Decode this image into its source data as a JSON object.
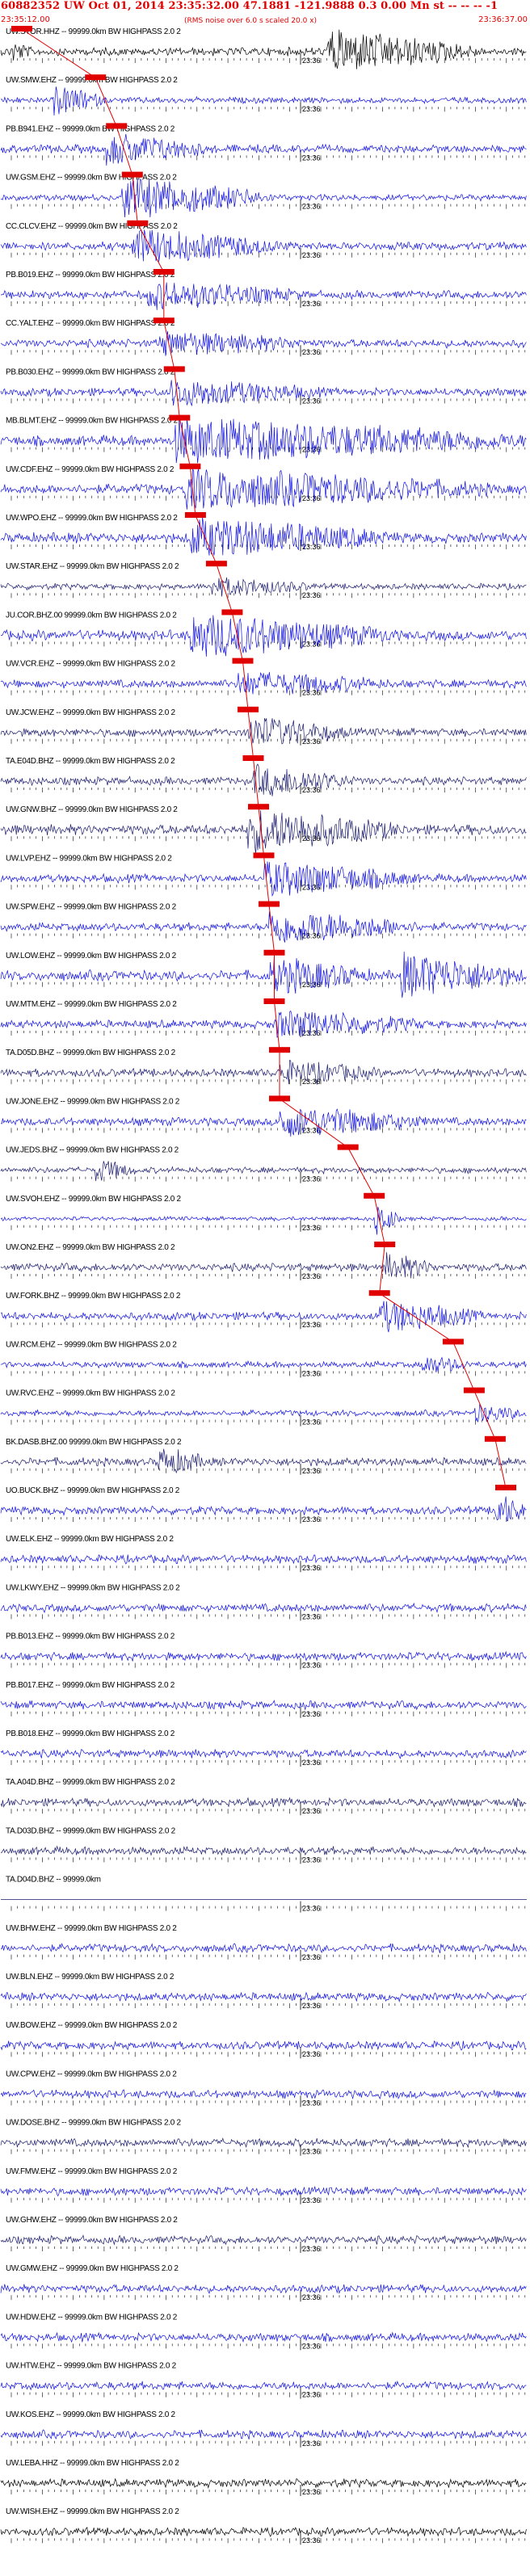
{
  "header": {
    "title": "60882352 UW Oct 01, 2014 23:35:32.00  47.1881 -121.9888  0.3 0.00 Mn st -- -- -- -1",
    "start_time": "23:35:12.00",
    "end_time": "23:36:37.00",
    "note": "(RMS noise over 6.0 s scaled 20.0 x)"
  },
  "chart_data": {
    "type": "line",
    "title": "60882352 UW Oct 01, 2014 23:35:32.00  47.1881 -121.9888  0.3 0.00 Mn st -- -- -- -1",
    "x_start": "23:35:12.00",
    "x_end": "23:36:37.00",
    "minute_mark": "23:36",
    "grid": false,
    "colors": {
      "trace": "#1010e0",
      "trace_dark": "#1a1a6e",
      "pick": "#e00000",
      "label": "#000000"
    },
    "traces": [
      {
        "label": "UW.STOR.HHZ -- 99999.0km BW  HIGHPASS  2.0  2",
        "color": "#000000",
        "amp": 4,
        "events": [
          {
            "t": 0.02,
            "a": 0.4,
            "d": 0.04
          },
          {
            "t": 0.62,
            "a": 1.0,
            "d": 0.3
          }
        ],
        "pick": 0.04
      },
      {
        "label": "UW.SMW.EHZ -- 99999.0km BW  HIGHPASS  2.0  2",
        "color": "#1010e0",
        "amp": 3,
        "events": [
          {
            "t": 0.1,
            "a": 0.7,
            "d": 0.1
          }
        ],
        "pick": 0.18
      },
      {
        "label": "PB.B941.EHZ -- 99999.0km BW  HIGHPASS  2.0  2",
        "color": "#1010e0",
        "amp": 4,
        "events": [
          {
            "t": 0.2,
            "a": 0.7,
            "d": 0.2
          }
        ],
        "pick": 0.22
      },
      {
        "label": "UW.GSM.EHZ -- 99999.0km BW  HIGHPASS  2.0  2",
        "color": "#1010e0",
        "amp": 3,
        "events": [
          {
            "t": 0.23,
            "a": 1.0,
            "d": 0.3
          }
        ],
        "pick": 0.25
      },
      {
        "label": "CC.CLCV.EHZ -- 99999.0km BW  HIGHPASS  2.0  2",
        "color": "#1010e0",
        "amp": 4,
        "events": [
          {
            "t": 0.25,
            "a": 0.8,
            "d": 0.3
          }
        ],
        "pick": 0.26
      },
      {
        "label": "PB.B019.EHZ -- 99999.0km BW  HIGHPASS  2.0  2",
        "color": "#1010e0",
        "amp": 4,
        "events": [
          {
            "t": 0.28,
            "a": 0.6,
            "d": 0.3
          }
        ],
        "pick": 0.31
      },
      {
        "label": "CC.YALT.EHZ -- 99999.0km BW  HIGHPASS  2.0  2",
        "color": "#1010e0",
        "amp": 4,
        "events": [
          {
            "t": 0.3,
            "a": 0.5,
            "d": 0.3
          }
        ],
        "pick": 0.31
      },
      {
        "label": "PB.B030.EHZ -- 99999.0km BW  HIGHPASS  2.0  2",
        "color": "#1010e0",
        "amp": 4,
        "events": [
          {
            "t": 0.32,
            "a": 0.6,
            "d": 0.3
          }
        ],
        "pick": 0.33
      },
      {
        "label": "MB.BLMT.EHZ -- 99999.0km BW  HIGHPASS  2.0  2",
        "color": "#1010e0",
        "amp": 5,
        "events": [
          {
            "t": 0.33,
            "a": 1.0,
            "d": 0.7
          }
        ],
        "pick": 0.34
      },
      {
        "label": "UW.CDF.EHZ -- 99999.0km BW  HIGHPASS  2.0  2",
        "color": "#1010e0",
        "amp": 5,
        "events": [
          {
            "t": 0.35,
            "a": 0.9,
            "d": 0.6
          }
        ],
        "pick": 0.36
      },
      {
        "label": "UW.WPO.EHZ -- 99999.0km BW  HIGHPASS  2.0  2",
        "color": "#1010e0",
        "amp": 5,
        "events": [
          {
            "t": 0.36,
            "a": 0.9,
            "d": 0.4
          }
        ],
        "pick": 0.37
      },
      {
        "label": "UW.STAR.EHZ -- 99999.0km BW  HIGHPASS  2.0  2",
        "color": "#1a1a6e",
        "amp": 3,
        "events": [
          {
            "t": 0.4,
            "a": 0.4,
            "d": 0.2
          }
        ],
        "pick": 0.41
      },
      {
        "label": "JU.COR.BHZ.00 99999.0km BW  HIGHPASS  2.0  2",
        "color": "#1010e0",
        "amp": 5,
        "events": [
          {
            "t": 0.36,
            "a": 1.0,
            "d": 0.4
          }
        ],
        "pick": 0.44
      },
      {
        "label": "UW.VCR.EHZ -- 99999.0km BW  HIGHPASS  2.0  2",
        "color": "#1010e0",
        "amp": 4,
        "events": [
          {
            "t": 0.45,
            "a": 0.5,
            "d": 0.3
          }
        ],
        "pick": 0.46
      },
      {
        "label": "UW.JCW.EHZ -- 99999.0km BW  HIGHPASS  2.0  2",
        "color": "#1a1a6e",
        "amp": 4,
        "events": [
          {
            "t": 0.47,
            "a": 0.7,
            "d": 0.2
          }
        ],
        "pick": 0.47
      },
      {
        "label": "TA.E04D.BHZ -- 99999.0km BW  HIGHPASS  2.0  2",
        "color": "#1a1a6e",
        "amp": 4,
        "events": [
          {
            "t": 0.48,
            "a": 0.7,
            "d": 0.2
          }
        ],
        "pick": 0.48
      },
      {
        "label": "UW.GNW.BHZ -- 99999.0km BW  HIGHPASS  2.0  2",
        "color": "#1a1a6e",
        "amp": 5,
        "events": [
          {
            "t": 0.47,
            "a": 1.0,
            "d": 0.3
          }
        ],
        "pick": 0.49
      },
      {
        "label": "UW.LVP.EHZ -- 99999.0km BW  HIGHPASS  2.0  2",
        "color": "#1010e0",
        "amp": 4,
        "events": [
          {
            "t": 0.5,
            "a": 0.8,
            "d": 0.3
          }
        ],
        "pick": 0.5
      },
      {
        "label": "UW.SPW.EHZ -- 99999.0km BW  HIGHPASS  2.0  2",
        "color": "#1010e0",
        "amp": 4,
        "events": [
          {
            "t": 0.51,
            "a": 0.8,
            "d": 0.3
          }
        ],
        "pick": 0.51
      },
      {
        "label": "UW.LOW.EHZ -- 99999.0km BW  HIGHPASS  2.0  2",
        "color": "#1010e0",
        "amp": 5,
        "events": [
          {
            "t": 0.51,
            "a": 0.8,
            "d": 0.2
          },
          {
            "t": 0.76,
            "a": 1.0,
            "d": 0.24
          }
        ],
        "pick": 0.52
      },
      {
        "label": "UW.MTM.EHZ -- 99999.0km BW  HIGHPASS  2.0  2",
        "color": "#1010e0",
        "amp": 4,
        "events": [
          {
            "t": 0.52,
            "a": 0.6,
            "d": 0.3
          }
        ],
        "pick": 0.52
      },
      {
        "label": "TA.D05D.BHZ -- 99999.0km BW  HIGHPASS  2.0  2",
        "color": "#1a1a6e",
        "amp": 4,
        "events": [
          {
            "t": 0.53,
            "a": 0.5,
            "d": 0.2
          }
        ],
        "pick": 0.53
      },
      {
        "label": "UW.JONE.EHZ -- 99999.0km BW  HIGHPASS  2.0  2",
        "color": "#1010e0",
        "amp": 4,
        "events": [
          {
            "t": 0.53,
            "a": 0.7,
            "d": 0.3
          }
        ],
        "pick": 0.53
      },
      {
        "label": "UW.JEDS.BHZ -- 99999.0km BW  HIGHPASS  2.0  2",
        "color": "#1a1a6e",
        "amp": 3,
        "events": [
          {
            "t": 0.18,
            "a": 0.5,
            "d": 0.08
          }
        ],
        "pick": 0.66
      },
      {
        "label": "UW.SVOH.EHZ -- 99999.0km BW  HIGHPASS  2.0  2",
        "color": "#1010e0",
        "amp": 2,
        "events": [
          {
            "t": 0.71,
            "a": 0.9,
            "d": 0.05
          }
        ],
        "pick": 0.71
      },
      {
        "label": "UW.ON2.EHZ -- 99999.0km BW  HIGHPASS  2.0  2",
        "color": "#1a1a6e",
        "amp": 4,
        "events": [
          {
            "t": 0.73,
            "a": 0.6,
            "d": 0.1
          }
        ],
        "pick": 0.73
      },
      {
        "label": "UW.FORK.BHZ -- 99999.0km BW  HIGHPASS  2.0  2",
        "color": "#1010e0",
        "amp": 4,
        "events": [
          {
            "t": 0.72,
            "a": 0.7,
            "d": 0.2
          }
        ],
        "pick": 0.72
      },
      {
        "label": "UW.RCM.EHZ -- 99999.0km BW  HIGHPASS  2.0  2",
        "color": "#1010e0",
        "amp": 3,
        "events": [
          {
            "t": 0.8,
            "a": 0.4,
            "d": 0.1
          }
        ],
        "pick": 0.86
      },
      {
        "label": "UW.RVC.EHZ -- 99999.0km BW  HIGHPASS  2.0  2",
        "color": "#1010e0",
        "amp": 3,
        "events": [
          {
            "t": 0.9,
            "a": 0.4,
            "d": 0.1
          }
        ],
        "pick": 0.9
      },
      {
        "label": "BK.DASB.BHZ.00 99999.0km BW  HIGHPASS  2.0  2",
        "color": "#1a1a6e",
        "amp": 4,
        "events": [
          {
            "t": 0.3,
            "a": 0.6,
            "d": 0.1
          }
        ],
        "pick": 0.94
      },
      {
        "label": "UO.BUCK.BHZ -- 99999.0km BW  HIGHPASS  2.0  2",
        "color": "#1010e0",
        "amp": 4,
        "events": [
          {
            "t": 0.94,
            "a": 0.8,
            "d": 0.06
          }
        ],
        "pick": 0.96
      },
      {
        "label": "UW.ELK.EHZ -- 99999.0km BW  HIGHPASS  2.0  2",
        "color": "#1010e0",
        "amp": 4,
        "events": [],
        "pick": null
      },
      {
        "label": "UW.LKWY.EHZ -- 99999.0km BW  HIGHPASS  2.0  2",
        "color": "#1010e0",
        "amp": 4,
        "events": [],
        "pick": null
      },
      {
        "label": "PB.B013.EHZ -- 99999.0km BW  HIGHPASS  2.0  2",
        "color": "#1010e0",
        "amp": 4,
        "events": [],
        "pick": null
      },
      {
        "label": "PB.B017.EHZ -- 99999.0km BW  HIGHPASS  2.0  2",
        "color": "#1010e0",
        "amp": 4,
        "events": [],
        "pick": null
      },
      {
        "label": "PB.B018.EHZ -- 99999.0km BW  HIGHPASS  2.0  2",
        "color": "#1010e0",
        "amp": 4,
        "events": [],
        "pick": null
      },
      {
        "label": "TA.A04D.BHZ -- 99999.0km BW  HIGHPASS  2.0  2",
        "color": "#1a1a6e",
        "amp": 4,
        "events": [],
        "pick": null
      },
      {
        "label": "TA.D03D.BHZ -- 99999.0km BW  HIGHPASS  2.0  2",
        "color": "#1a1a6e",
        "amp": 4,
        "events": [],
        "pick": null
      },
      {
        "label": "TA.D04D.BHZ -- 99999.0km",
        "color": "#1a1a6e",
        "amp": 0,
        "events": [],
        "pick": null
      },
      {
        "label": "UW.BHW.EHZ -- 99999.0km BW  HIGHPASS  2.0  2",
        "color": "#1010e0",
        "amp": 4,
        "events": [],
        "pick": null
      },
      {
        "label": "UW.BLN.EHZ -- 99999.0km BW  HIGHPASS  2.0  2",
        "color": "#1010e0",
        "amp": 4,
        "events": [],
        "pick": null
      },
      {
        "label": "UW.BOW.EHZ -- 99999.0km BW  HIGHPASS  2.0  2",
        "color": "#1010e0",
        "amp": 4,
        "events": [],
        "pick": null
      },
      {
        "label": "UW.CPW.EHZ -- 99999.0km BW  HIGHPASS  2.0  2",
        "color": "#1010e0",
        "amp": 4,
        "events": [],
        "pick": null
      },
      {
        "label": "UW.DOSE.BHZ -- 99999.0km BW  HIGHPASS  2.0  2",
        "color": "#1a1a6e",
        "amp": 4,
        "events": [],
        "pick": null
      },
      {
        "label": "UW.FMW.EHZ -- 99999.0km BW  HIGHPASS  2.0  2",
        "color": "#1010e0",
        "amp": 4,
        "events": [],
        "pick": null
      },
      {
        "label": "UW.GHW.EHZ -- 99999.0km BW  HIGHPASS  2.0  2",
        "color": "#1a1a6e",
        "amp": 4,
        "events": [],
        "pick": null
      },
      {
        "label": "UW.GMW.EHZ -- 99999.0km BW  HIGHPASS  2.0  2",
        "color": "#1010e0",
        "amp": 4,
        "events": [],
        "pick": null
      },
      {
        "label": "UW.HDW.EHZ -- 99999.0km BW  HIGHPASS  2.0  2",
        "color": "#1010e0",
        "amp": 4,
        "events": [],
        "pick": null
      },
      {
        "label": "UW.HTW.EHZ -- 99999.0km BW  HIGHPASS  2.0  2",
        "color": "#1010e0",
        "amp": 4,
        "events": [],
        "pick": null
      },
      {
        "label": "UW.KOS.EHZ -- 99999.0km BW  HIGHPASS  2.0  2",
        "color": "#1010e0",
        "amp": 4,
        "events": [],
        "pick": null
      },
      {
        "label": "UW.LEBA.HHZ -- 99999.0km BW  HIGHPASS  2.0  2",
        "color": "#000000",
        "amp": 4,
        "events": [],
        "pick": null
      },
      {
        "label": "UW.WISH.EHZ -- 99999.0km BW  HIGHPASS  2.0  2",
        "color": "#000000",
        "amp": 4,
        "events": [],
        "pick": null
      }
    ]
  }
}
